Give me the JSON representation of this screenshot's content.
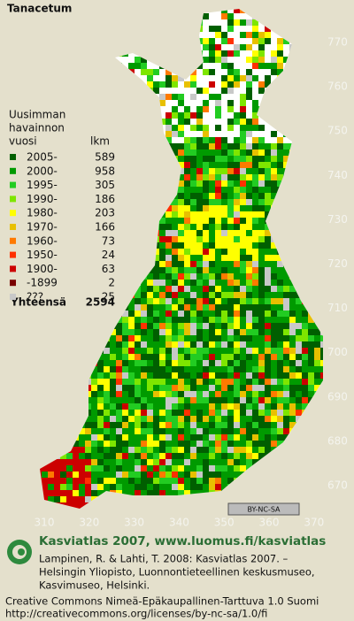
{
  "title": "Tanacetum",
  "legend": {
    "heading": [
      "Uusimman",
      "havainnon",
      "vuosi"
    ],
    "count_heading": "lkm",
    "rows": [
      {
        "label": "2005-",
        "count": 589,
        "color": "#005f00"
      },
      {
        "label": "2000-",
        "count": 958,
        "color": "#009a00"
      },
      {
        "label": "1995-",
        "count": 305,
        "color": "#22cc22"
      },
      {
        "label": "1990-",
        "count": 186,
        "color": "#7ee600"
      },
      {
        "label": "1980-",
        "count": 203,
        "color": "#ffff00"
      },
      {
        "label": "1970-",
        "count": 166,
        "color": "#e8c000"
      },
      {
        "label": "1960-",
        "count": 73,
        "color": "#ff7a00"
      },
      {
        "label": "1950-",
        "count": 24,
        "color": "#ff3000"
      },
      {
        "label": "1900-",
        "count": 63,
        "color": "#cc0000"
      },
      {
        "label": "-1899",
        "count": 2,
        "color": "#7a0000"
      },
      {
        "label": "???",
        "count": 25,
        "color": "#c8c8c8"
      }
    ],
    "total_label": "Yhteensä",
    "total": 2594
  },
  "axes": {
    "y_labels": [
      770,
      760,
      750,
      740,
      730,
      720,
      710,
      700,
      690,
      680,
      670
    ],
    "x_labels": [
      310,
      320,
      330,
      340,
      350,
      360,
      370
    ]
  },
  "license_badge": "BY-NC-SA",
  "footer": {
    "brand": "Kasviatlas 2007, www.luomus.fi/kasviatlas",
    "citation": [
      "Lampinen, R. & Lahti, T. 2008: Kasviatlas 2007. –",
      "Helsingin Yliopisto, Luonnontieteellinen keskusmuseo,",
      "Kasvimuseo, Helsinki."
    ],
    "license": [
      "Creative Commons Nimeä-Epäkaupallinen-Tarttuva 1.0 Suomi",
      "http://creativecommons.org/licenses/by-nc-sa/1.0/fi"
    ]
  }
}
